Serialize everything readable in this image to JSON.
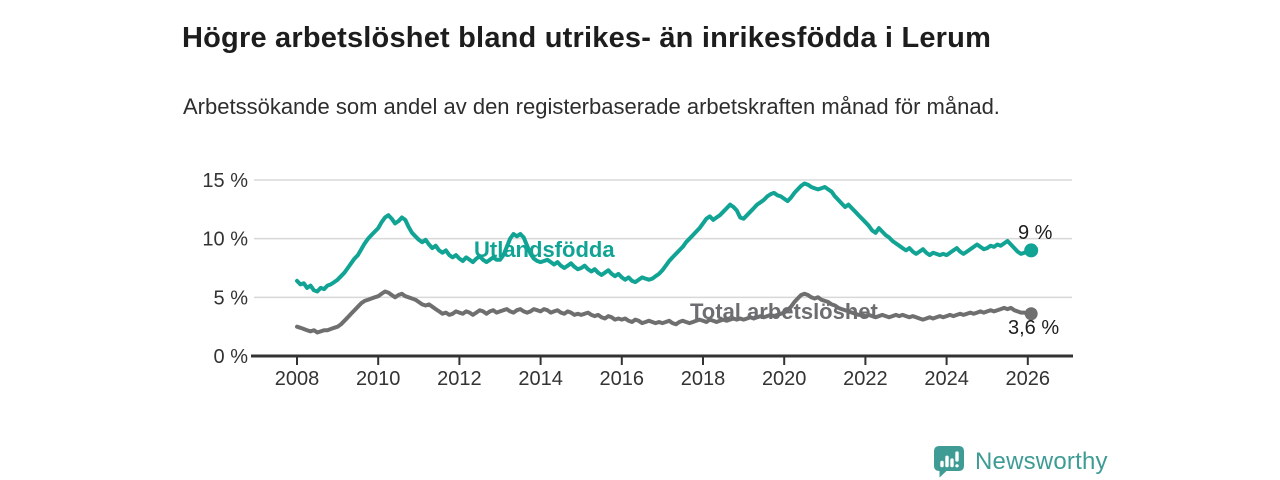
{
  "header": {
    "title": "Högre arbetslöshet bland utrikes- än inrikesfödda i Lerum",
    "subtitle": "Arbetssökande som andel av den registerbaserade arbetskraften månad för månad."
  },
  "footer": {
    "brand": "Newsworthy"
  },
  "colors": {
    "accent_teal": "#11A394",
    "line_gray": "#6F6F6F",
    "label_gray": "#6D6D71",
    "gridline": "#D8D8D8",
    "axis": "#333333",
    "tick_text": "#333333",
    "annotation_text": "#1D1D1D",
    "brand_teal": "#3E9C95"
  },
  "chart_data": {
    "type": "line",
    "title": "Högre arbetslöshet bland utrikes- än inrikesfödda i Lerum",
    "subtitle": "Arbetssökande som andel av den registerbaserade arbetskraften månad för månad.",
    "x_unit": "month",
    "x_start": "2008-01",
    "x_end": "2026-02",
    "xlim": [
      2008,
      2027.1
    ],
    "ylim": [
      0,
      15.8
    ],
    "grid": true,
    "legend_position": "inline-labels",
    "x_ticks": [
      "2008",
      "2010",
      "2012",
      "2014",
      "2016",
      "2018",
      "2020",
      "2022",
      "2024",
      "2026"
    ],
    "y_ticks": [
      {
        "value": 0,
        "label": "0 %"
      },
      {
        "value": 5,
        "label": "5 %"
      },
      {
        "value": 10,
        "label": "10 %"
      },
      {
        "value": 15,
        "label": "15 %"
      }
    ],
    "series": [
      {
        "name": "Utlandsfödda",
        "color": "#11A394",
        "end_label": "9 %",
        "end_value": 9.0,
        "marker_radius": 7,
        "values": [
          6.4,
          6.1,
          6.2,
          5.8,
          6.0,
          5.6,
          5.5,
          5.8,
          5.7,
          6.0,
          6.1,
          6.3,
          6.5,
          6.8,
          7.1,
          7.5,
          7.9,
          8.3,
          8.6,
          9.1,
          9.6,
          10.0,
          10.3,
          10.6,
          10.9,
          11.4,
          11.8,
          12.0,
          11.7,
          11.3,
          11.5,
          11.8,
          11.6,
          11.0,
          10.5,
          10.2,
          9.9,
          9.7,
          9.9,
          9.5,
          9.2,
          9.4,
          9.0,
          8.8,
          9.0,
          8.6,
          8.4,
          8.6,
          8.3,
          8.1,
          8.4,
          8.2,
          8.0,
          8.3,
          8.5,
          8.2,
          8.0,
          8.2,
          8.4,
          8.2,
          8.2,
          8.6,
          9.3,
          10.0,
          10.4,
          10.2,
          10.4,
          10.1,
          9.4,
          8.7,
          8.3,
          8.1,
          8.0,
          8.1,
          8.2,
          8.0,
          7.8,
          8.0,
          7.7,
          7.5,
          7.7,
          7.9,
          7.6,
          7.4,
          7.5,
          7.7,
          7.4,
          7.2,
          7.4,
          7.1,
          6.9,
          7.1,
          7.3,
          7.0,
          6.8,
          7.0,
          6.7,
          6.5,
          6.7,
          6.4,
          6.3,
          6.5,
          6.7,
          6.6,
          6.5,
          6.6,
          6.8,
          7.0,
          7.3,
          7.7,
          8.1,
          8.4,
          8.7,
          9.0,
          9.3,
          9.7,
          10.0,
          10.3,
          10.6,
          10.9,
          11.3,
          11.7,
          11.9,
          11.6,
          11.8,
          12.0,
          12.3,
          12.6,
          12.9,
          12.7,
          12.4,
          11.8,
          11.7,
          12.0,
          12.3,
          12.6,
          12.9,
          13.1,
          13.3,
          13.6,
          13.8,
          13.9,
          13.7,
          13.6,
          13.4,
          13.2,
          13.5,
          13.9,
          14.2,
          14.5,
          14.7,
          14.6,
          14.4,
          14.3,
          14.2,
          14.3,
          14.4,
          14.2,
          14.0,
          13.6,
          13.3,
          13.0,
          12.7,
          12.9,
          12.6,
          12.3,
          12.0,
          11.7,
          11.4,
          11.1,
          10.7,
          10.5,
          10.9,
          10.6,
          10.3,
          10.1,
          9.8,
          9.6,
          9.4,
          9.2,
          9.0,
          9.2,
          8.9,
          8.7,
          8.9,
          9.1,
          8.8,
          8.6,
          8.8,
          8.7,
          8.6,
          8.7,
          8.6,
          8.8,
          9.0,
          9.2,
          8.9,
          8.7,
          8.9,
          9.1,
          9.3,
          9.5,
          9.3,
          9.1,
          9.2,
          9.4,
          9.3,
          9.5,
          9.4,
          9.6,
          9.8,
          9.5,
          9.2,
          8.9,
          8.7,
          8.8,
          8.9,
          9.0
        ]
      },
      {
        "name": "Total arbetslöshet",
        "color": "#6F6F6F",
        "end_label": "3,6 %",
        "end_value": 3.6,
        "marker_radius": 6.5,
        "values": [
          2.5,
          2.4,
          2.3,
          2.2,
          2.1,
          2.2,
          2.0,
          2.1,
          2.2,
          2.2,
          2.3,
          2.4,
          2.5,
          2.7,
          3.0,
          3.3,
          3.6,
          3.9,
          4.2,
          4.5,
          4.7,
          4.8,
          4.9,
          5.0,
          5.1,
          5.3,
          5.5,
          5.4,
          5.2,
          5.0,
          5.2,
          5.3,
          5.1,
          5.0,
          4.9,
          4.8,
          4.6,
          4.4,
          4.3,
          4.4,
          4.2,
          4.0,
          3.8,
          3.6,
          3.7,
          3.5,
          3.6,
          3.8,
          3.7,
          3.6,
          3.8,
          3.7,
          3.5,
          3.7,
          3.9,
          3.8,
          3.6,
          3.8,
          3.9,
          3.7,
          3.8,
          3.9,
          4.0,
          3.8,
          3.7,
          3.9,
          4.0,
          3.8,
          3.7,
          3.8,
          4.0,
          3.9,
          3.8,
          4.0,
          3.9,
          3.7,
          3.8,
          3.9,
          3.7,
          3.6,
          3.8,
          3.7,
          3.5,
          3.6,
          3.5,
          3.6,
          3.7,
          3.5,
          3.4,
          3.5,
          3.3,
          3.2,
          3.4,
          3.3,
          3.1,
          3.2,
          3.1,
          3.2,
          3.0,
          2.9,
          3.1,
          3.0,
          2.8,
          2.9,
          3.0,
          2.9,
          2.8,
          2.9,
          2.8,
          2.9,
          3.0,
          2.8,
          2.7,
          2.9,
          3.0,
          2.9,
          2.8,
          2.9,
          3.0,
          3.1,
          3.0,
          2.9,
          3.1,
          3.0,
          2.9,
          3.0,
          3.1,
          3.0,
          3.1,
          3.2,
          3.1,
          3.2,
          3.1,
          3.2,
          3.3,
          3.2,
          3.3,
          3.4,
          3.3,
          3.4,
          3.5,
          3.4,
          3.5,
          3.6,
          3.7,
          3.9,
          4.2,
          4.6,
          4.9,
          5.2,
          5.3,
          5.2,
          5.0,
          4.9,
          5.0,
          4.8,
          4.7,
          4.6,
          4.4,
          4.3,
          4.1,
          4.0,
          3.9,
          3.8,
          3.7,
          3.6,
          3.5,
          3.5,
          3.4,
          3.5,
          3.4,
          3.3,
          3.4,
          3.5,
          3.4,
          3.3,
          3.4,
          3.5,
          3.4,
          3.5,
          3.4,
          3.3,
          3.4,
          3.3,
          3.2,
          3.1,
          3.2,
          3.3,
          3.2,
          3.3,
          3.4,
          3.3,
          3.4,
          3.5,
          3.4,
          3.5,
          3.6,
          3.5,
          3.6,
          3.7,
          3.6,
          3.7,
          3.8,
          3.7,
          3.8,
          3.9,
          3.8,
          3.9,
          4.0,
          4.1,
          4.0,
          4.1,
          3.9,
          3.8,
          3.7,
          3.7,
          3.6,
          3.6
        ]
      }
    ]
  }
}
